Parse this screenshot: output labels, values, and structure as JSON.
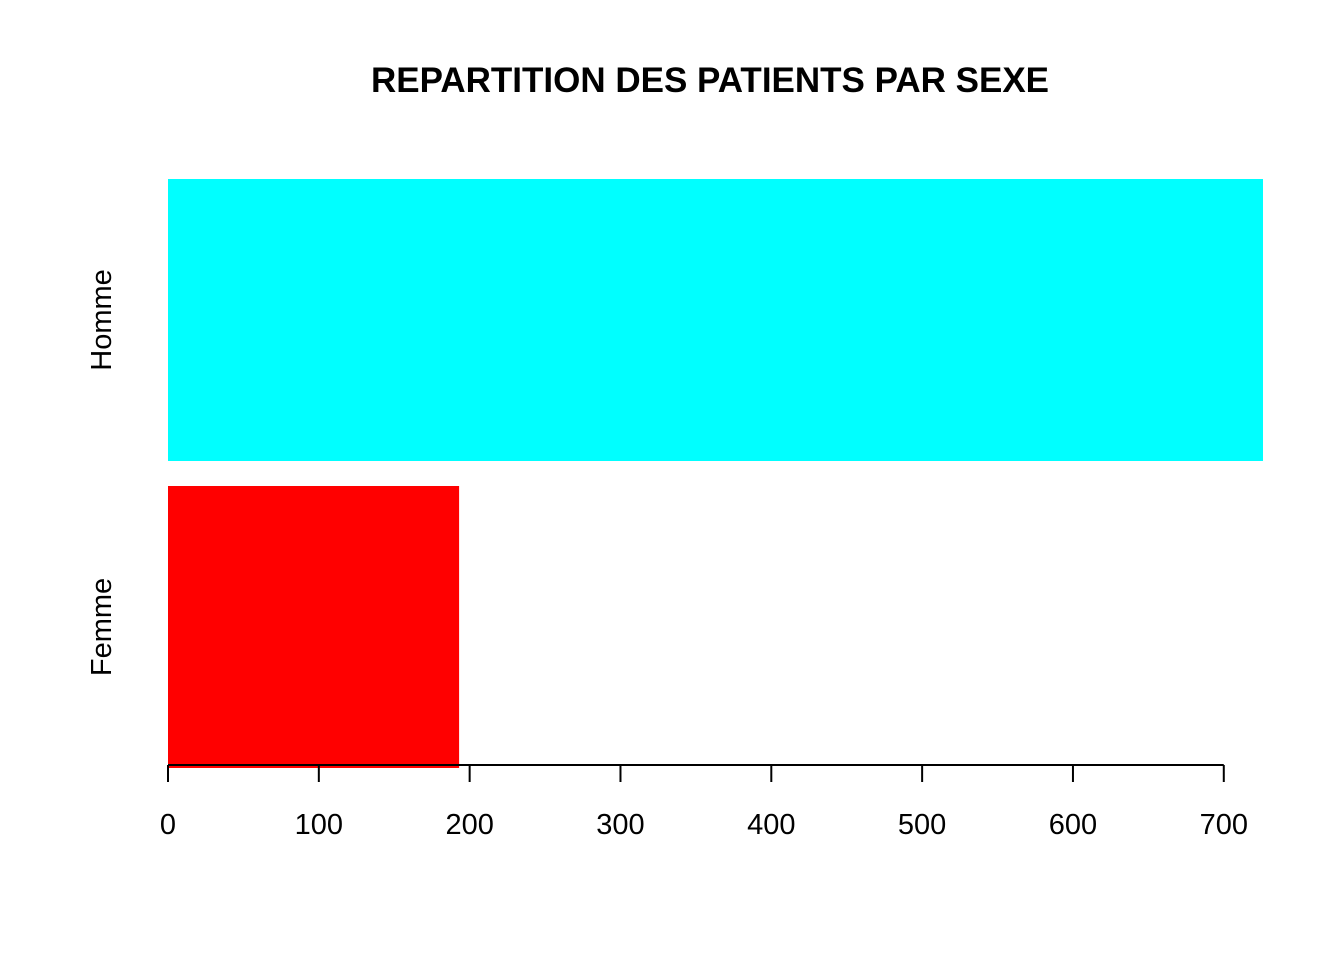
{
  "chart_data": {
    "type": "bar",
    "orientation": "horizontal",
    "title": "REPARTITION DES PATIENTS PAR SEXE",
    "xlabel": "",
    "ylabel": "",
    "categories": [
      "Femme",
      "Homme"
    ],
    "values": [
      193,
      726
    ],
    "colors": [
      "#ff0000",
      "#00ffff"
    ],
    "xlim": [
      0,
      726
    ],
    "xticks": [
      0,
      100,
      200,
      300,
      400,
      500,
      600,
      700
    ],
    "xtick_labels": [
      "0",
      "100",
      "200",
      "300",
      "400",
      "500",
      "600",
      "700"
    ],
    "grid": false,
    "legend": "none"
  }
}
